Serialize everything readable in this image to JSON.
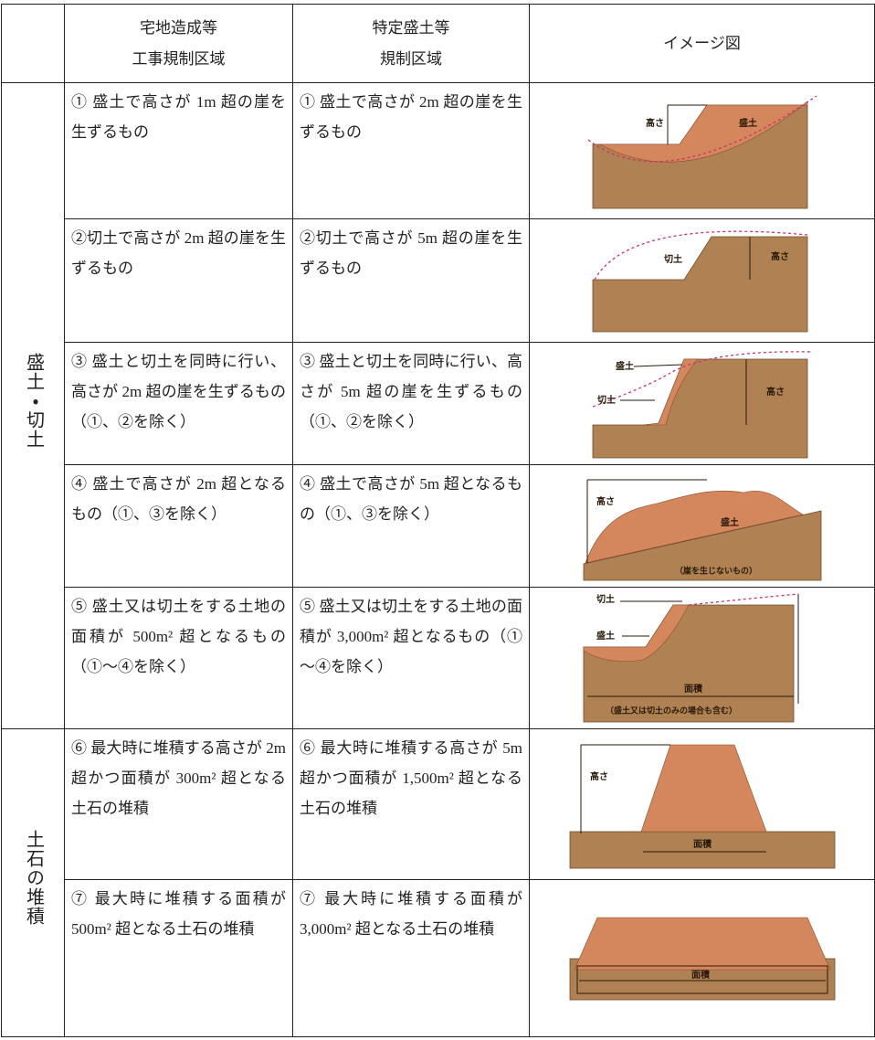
{
  "table": {
    "header": {
      "zone1": [
        "宅地造成等",
        "工事規制区域"
      ],
      "zone2": [
        "特定盛土等",
        "規制区域"
      ],
      "image": "イメージ図"
    },
    "groups": [
      {
        "label": "盛土・切土",
        "rows": [
          {
            "zone1": "① 盛土で高さが 1m 超の崖を生ずるもの",
            "zone2": "① 盛土で高さが 2m 超の崖を生ずるもの",
            "image_labels": [
              "高さ",
              "盛土"
            ]
          },
          {
            "zone1": "②切土で高さが 2m 超の崖を生ずるもの",
            "zone2": "②切土で高さが 5m 超の崖を生ずるもの",
            "image_labels": [
              "切土",
              "高さ"
            ]
          },
          {
            "zone1": "③ 盛土と切土を同時に行い、高さが 2m 超の崖を生ずるもの（①、②を除く）",
            "zone2": "③ 盛土と切土を同時に行い、高さが 5m 超の崖を生ずるもの（①、②を除く）",
            "image_labels": [
              "盛土",
              "切土",
              "高さ"
            ]
          },
          {
            "zone1": "④ 盛土で高さが 2m 超となるもの（①、③を除く）",
            "zone2": "④ 盛土で高さが 5m 超となるもの（①、③を除く）",
            "image_labels": [
              "高さ",
              "盛土",
              "（崖を生じないもの）"
            ]
          },
          {
            "zone1": "⑤ 盛土又は切土をする土地の面積が 500m² 超となるもの（①～④を除く）",
            "zone2": "⑤ 盛土又は切土をする土地の面積が 3,000m² 超となるもの（①～④を除く）",
            "image_labels": [
              "切土",
              "盛土",
              "面積",
              "（盛土又は切土のみの場合も含む）"
            ]
          }
        ]
      },
      {
        "label": "土石の堆積",
        "rows": [
          {
            "zone1": "⑥ 最大時に堆積する高さが 2m 超かつ面積が 300m² 超となる土石の堆積",
            "zone2": "⑥ 最大時に堆積する高さが 5m 超かつ面積が 1,500m² 超となる土石の堆積",
            "image_labels": [
              "高さ",
              "面積"
            ]
          },
          {
            "zone1": "⑦ 最大時に堆積する面積が 500m² 超となる土石の堆積",
            "zone2": "⑦ 最大時に堆積する面積が 3,000m² 超となる土石の堆積",
            "image_labels": [
              "面積"
            ]
          }
        ]
      }
    ]
  }
}
